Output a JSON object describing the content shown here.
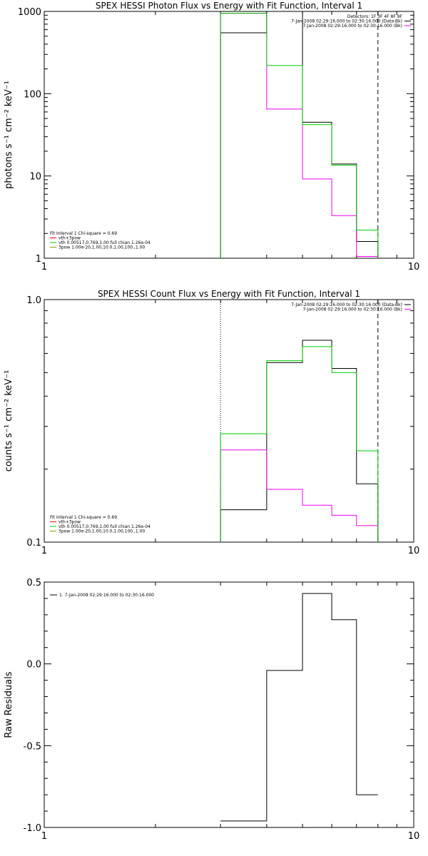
{
  "colors": {
    "black": "#000000",
    "magenta": "#ee00ee",
    "green": "#00cc00",
    "red": "#ff0000",
    "olive": "#999900"
  },
  "chart_data": [
    {
      "type": "line",
      "title": "SPEX HESSI Photon Flux vs Energy with Fit Function, Interval 1",
      "ylabel": "photons s⁻¹ cm⁻² keV⁻¹",
      "xlabel": "",
      "xscale": "log",
      "yscale": "log",
      "xlim": [
        1,
        10
      ],
      "ylim": [
        1,
        1000
      ],
      "x_ticks": [
        "1",
        "10"
      ],
      "y_ticks": [
        "1",
        "10",
        "100",
        "1000"
      ],
      "legend_top": [
        "Detectors: 1F 3F 4F 8F 9F",
        "7-Jan-2008 02:29:16.000 to 02:30:16.000 (Data-Bk)",
        "7-Jan-2008 02:29:16.000 to 02:30:16.000 (Bk)"
      ],
      "legend_bottom": [
        "Fit Interval 1   Chi-square = 0.69",
        "vth+3pow",
        "vth 0.00517,0.769,1.00   full chian 1.26e-04",
        "3pow 1.00e-20,1.00,10.0,1.00,100.,1.00"
      ],
      "vlines": [
        3,
        8
      ],
      "bin_edges": [
        3,
        4,
        5,
        6,
        7,
        8
      ],
      "series": [
        {
          "color": "black",
          "values": [
            550,
            1000,
            45,
            14,
            1.6
          ]
        },
        {
          "color": "magenta",
          "values": [
            950,
            65,
            9.2,
            3.3,
            1.05
          ]
        },
        {
          "color": "green",
          "values": [
            950,
            220,
            42,
            13.5,
            2.2
          ]
        }
      ]
    },
    {
      "type": "line",
      "title": "SPEX HESSI Count Flux vs Energy with Fit Function, Interval 1",
      "ylabel": "counts s⁻¹ cm⁻² keV⁻¹",
      "xlabel": "",
      "xscale": "log",
      "yscale": "log",
      "xlim": [
        1,
        10
      ],
      "ylim": [
        0.1,
        1.0
      ],
      "x_ticks": [
        "1",
        "10"
      ],
      "y_ticks": [
        "0.1",
        "1.0"
      ],
      "legend_top": [
        "7-Jan-2008 02:29:16.000 to 02:30:16.000 (Data-Bk)",
        "7-Jan-2008 02:29:16.000 to 02:30:16.000 (Bk)"
      ],
      "legend_bottom": [
        "Fit Interval 1   Chi-square = 0.69",
        "vth+3pow",
        "vth 0.00517,0.769,1.00   full chian 1.26e-04",
        "3pow 1.00e-20,1.00,10.0,1.00,100.,1.00"
      ],
      "vlines": [
        3,
        8
      ],
      "bin_edges": [
        3,
        4,
        5,
        6,
        7,
        8
      ],
      "series": [
        {
          "color": "black",
          "values": [
            0.136,
            0.55,
            0.68,
            0.52,
            0.174
          ]
        },
        {
          "color": "magenta",
          "values": [
            0.24,
            0.165,
            0.142,
            0.129,
            0.117
          ]
        },
        {
          "color": "green",
          "values": [
            0.28,
            0.56,
            0.64,
            0.5,
            0.238
          ]
        }
      ]
    },
    {
      "type": "line",
      "title": "",
      "ylabel": "Raw Residuals",
      "xlabel": "",
      "xscale": "log",
      "yscale": "linear",
      "xlim": [
        1,
        10
      ],
      "ylim": [
        -1.0,
        0.5
      ],
      "x_ticks": [
        "1",
        "10"
      ],
      "y_ticks": [
        "-1.0",
        "-0.5",
        "0.0",
        "0.5"
      ],
      "legend": [
        "1.  7-Jan-2008 02:29:16.000 to 02:30:16.000"
      ],
      "bin_edges": [
        3,
        4,
        5,
        6,
        7,
        8
      ],
      "series": [
        {
          "color": "black",
          "values": [
            -0.96,
            -0.04,
            0.43,
            0.27,
            -0.8
          ]
        }
      ]
    }
  ]
}
